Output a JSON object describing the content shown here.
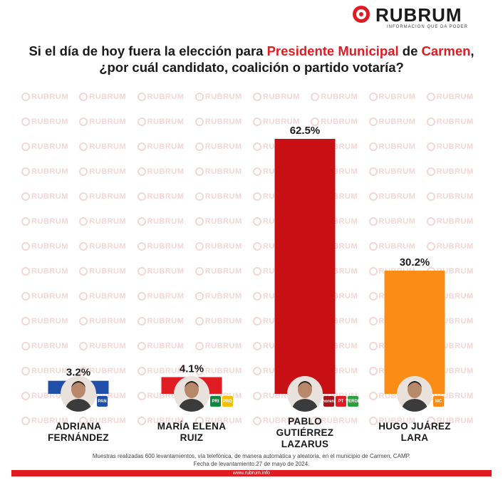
{
  "brand": {
    "name": "RUBRUM",
    "tagline": "INFORMACIÓN QUE DA PODER",
    "watermark_text": "RUBRUM",
    "color": "#e01b22"
  },
  "title": {
    "part1": "Si el día de hoy fuera la elección para ",
    "highlight1": "Presidente Municipal",
    "part2": " de ",
    "highlight2": "Carmen",
    "part3": ",",
    "line2": "¿por cuál candidato, coalición o partido votaría?"
  },
  "chart_data": {
    "type": "bar",
    "title": "Si el día de hoy fuera la elección para Presidente Municipal de Carmen, ¿por cuál candidato, coalición o partido votaría?",
    "categories": [
      "ADRIANA FERNÁNDEZ",
      "MARÍA ELENA RUIZ",
      "PABLO GUTIÉRREZ LAZARUS",
      "HUGO JUÁREZ LARA"
    ],
    "values": [
      3.2,
      4.1,
      62.5,
      30.2
    ],
    "value_labels": [
      "3.2%",
      "4.1%",
      "62.5%",
      "30.2%"
    ],
    "colors": [
      "#1f4fa8",
      "#e01b22",
      "#c80f13",
      "#fb8c16"
    ],
    "ylim": [
      0,
      62.5
    ],
    "grid": false,
    "legend": "none"
  },
  "candidates": [
    {
      "line1": "ADRIANA",
      "line2": "FERNÁNDEZ",
      "line3": "",
      "parties": [
        "PAN"
      ],
      "party_colors": [
        "#1f4fa8"
      ]
    },
    {
      "line1": "MARÍA ELENA",
      "line2": "RUIZ",
      "line3": "",
      "parties": [
        "PRI",
        "PRD"
      ],
      "party_colors": [
        "#0f8a3c",
        "#f2c200"
      ]
    },
    {
      "line1": "PABLO",
      "line2": "GUTIÉRREZ",
      "line3": "LAZARUS",
      "parties": [
        "morena",
        "PT",
        "VERDE"
      ],
      "party_colors": [
        "#a5151a",
        "#e01b22",
        "#2e9e3a"
      ]
    },
    {
      "line1": "HUGO JUÁREZ",
      "line2": "LARA",
      "line3": "",
      "parties": [
        "MC"
      ],
      "party_colors": [
        "#fb8c16"
      ]
    }
  ],
  "footnote": {
    "line1": "Muestras realizadas 600 levantamientos, vía telefónica, de manera automática y aleatoria, en el municipio de Carmen, CAMP.",
    "line2": "Fecha de levantamiento:27 de mayo de 2024."
  },
  "footer": {
    "url": "www.rubrum.info"
  }
}
